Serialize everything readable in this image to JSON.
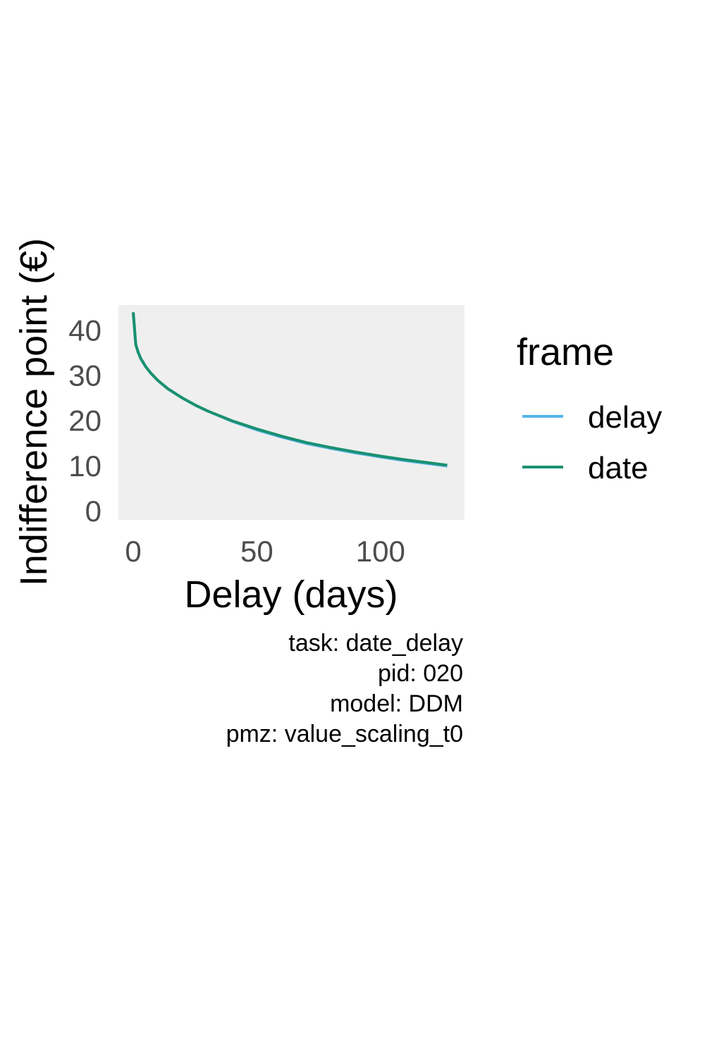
{
  "chart_data": {
    "type": "line",
    "xlabel": "Delay (days)",
    "ylabel": "Indifference point (€)",
    "xlim": [
      -6,
      134
    ],
    "ylim": [
      -2,
      45.5
    ],
    "x_ticks": [
      0,
      50,
      100
    ],
    "y_ticks": [
      0,
      10,
      20,
      30,
      40
    ],
    "grid": false,
    "legend": {
      "title": "frame",
      "position": "right",
      "entries": [
        "delay",
        "date"
      ]
    },
    "colors": {
      "delay": "#56B4E9",
      "date": "#1A9070",
      "panel": "#EFEFEF"
    },
    "series": [
      {
        "name": "delay",
        "x": [
          0,
          1,
          2,
          3,
          5,
          7,
          10,
          14,
          20,
          25,
          30,
          40,
          50,
          60,
          70,
          80,
          90,
          100,
          110,
          120,
          127
        ],
        "y": [
          43.9,
          36.8,
          35.0,
          33.7,
          31.9,
          30.5,
          28.8,
          27.0,
          24.9,
          23.4,
          22.1,
          19.8,
          17.9,
          16.3,
          14.9,
          13.8,
          12.8,
          11.9,
          11.1,
          10.4,
          9.9
        ]
      },
      {
        "name": "date",
        "x": [
          0,
          1,
          2,
          3,
          5,
          7,
          10,
          14,
          20,
          25,
          30,
          40,
          50,
          60,
          70,
          80,
          90,
          100,
          110,
          120,
          127
        ],
        "y": [
          43.9,
          36.8,
          35.0,
          33.7,
          31.9,
          30.5,
          28.8,
          27.0,
          24.9,
          23.4,
          22.1,
          19.9,
          18.1,
          16.5,
          15.1,
          14.0,
          13.0,
          12.1,
          11.3,
          10.6,
          10.1
        ]
      }
    ]
  },
  "caption": {
    "lines": [
      "task: date_delay",
      "pid: 020",
      "model: DDM",
      "pmz: value_scaling_t0"
    ]
  }
}
